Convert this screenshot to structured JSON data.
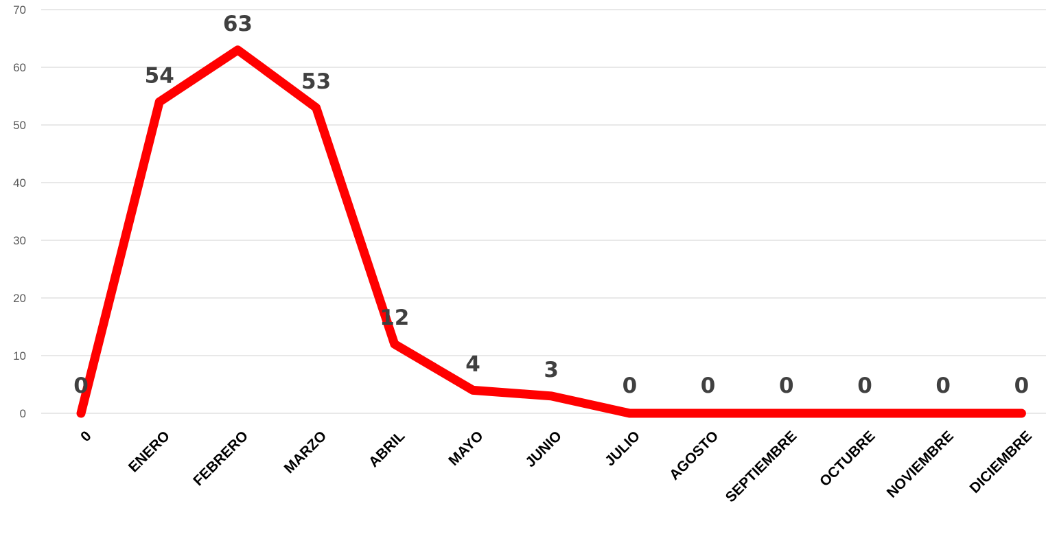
{
  "chart_data": {
    "type": "line",
    "title": "",
    "xlabel": "",
    "ylabel": "",
    "categories": [
      "0",
      "ENERO",
      "FEBRERO",
      "MARZO",
      "ABRIL",
      "MAYO",
      "JUNIO",
      "JULIO",
      "AGOSTO",
      "SEPTIEMBRE",
      "OCTUBRE",
      "NOVIEMBRE",
      "DICIEMBRE"
    ],
    "series": [
      {
        "values": [
          0,
          54,
          63,
          53,
          12,
          4,
          3,
          0,
          0,
          0,
          0,
          0,
          0
        ]
      }
    ],
    "data_labels": [
      "0",
      "54",
      "63",
      "53",
      "12",
      "4",
      "3",
      "0",
      "0",
      "0",
      "0",
      "0",
      "0"
    ],
    "y_ticks": [
      "0",
      "10",
      "20",
      "30",
      "40",
      "50",
      "60",
      "70"
    ],
    "ylim": [
      0,
      70
    ],
    "grid": true,
    "legend": "none",
    "line_color": "#ff0000"
  }
}
